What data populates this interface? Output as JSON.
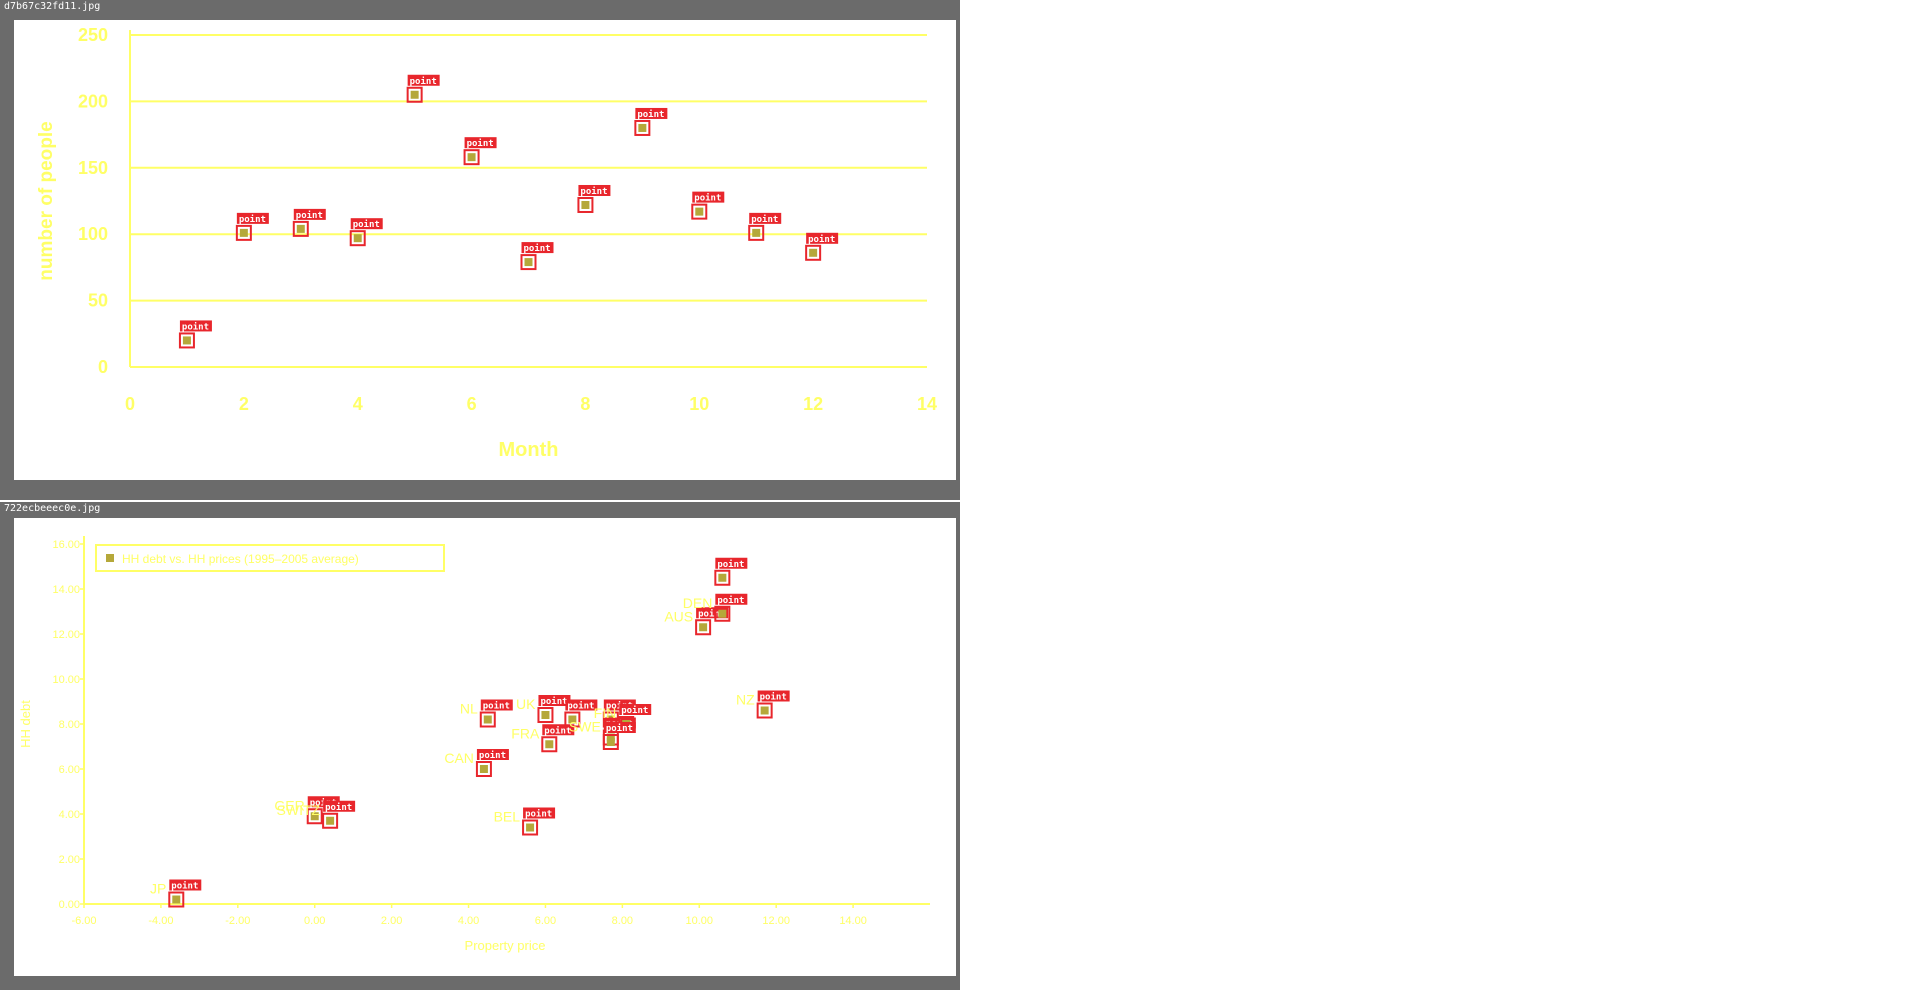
{
  "files": {
    "top": "d7b67c32fd11.jpg",
    "bottom": "722ecbeeec0e.jpg"
  },
  "colors": {
    "frame": "#6b6b6b",
    "chart_ink": "#ffff66",
    "detection_box": "#e8262c",
    "marker": "#b5a83a"
  },
  "detection_label": "point",
  "chart_data": [
    {
      "type": "scatter",
      "title": "",
      "xlabel": "Month",
      "ylabel": "number of people",
      "xlim": [
        0,
        14
      ],
      "ylim": [
        0,
        250
      ],
      "x_ticks": [
        "0",
        "2",
        "4",
        "6",
        "8",
        "10",
        "12",
        "14"
      ],
      "y_ticks": [
        "0",
        "50",
        "100",
        "150",
        "200",
        "250"
      ],
      "grid": "horizontal",
      "series": [
        {
          "x": [
            1,
            2,
            3,
            4,
            5,
            6,
            7,
            8,
            9,
            10,
            11,
            12
          ],
          "y": [
            20,
            101,
            104,
            97,
            205,
            158,
            79,
            122,
            180,
            117,
            101,
            86
          ]
        }
      ]
    },
    {
      "type": "scatter",
      "title": "",
      "xlabel": "Property price",
      "ylabel": "HH debt",
      "xlim": [
        -6,
        16
      ],
      "ylim": [
        0,
        16
      ],
      "x_ticks": [
        "-6.00",
        "-4.00",
        "-2.00",
        "0.00",
        "2.00",
        "4.00",
        "6.00",
        "8.00",
        "10.00",
        "12.00",
        "14.00"
      ],
      "y_ticks": [
        "0.00",
        "2.00",
        "4.00",
        "6.00",
        "8.00",
        "10.00",
        "12.00",
        "14.00",
        "16.00"
      ],
      "grid": "none",
      "legend": {
        "position": "top-left",
        "entries": [
          "HH debt vs. HH prices (1995–2005 average)"
        ]
      },
      "series": [
        {
          "x": [
            -3.6,
            0.0,
            0.4,
            4.4,
            5.6,
            4.5,
            6.0,
            6.1,
            6.7,
            7.7,
            7.7,
            8.1,
            7.7,
            10.1,
            10.6,
            10.6,
            11.7
          ],
          "y": [
            0.2,
            3.9,
            3.7,
            6.0,
            3.4,
            8.2,
            8.4,
            7.1,
            8.2,
            8.2,
            7.4,
            8.0,
            7.2,
            12.3,
            12.9,
            14.5,
            8.6
          ],
          "labels": [
            "JP",
            "GER",
            "SWITZ",
            "CAN",
            "BEL",
            "NL",
            "UK",
            "FRA",
            "",
            "",
            "SWE",
            "FIN",
            "",
            "AUS",
            "DEN",
            "",
            "NZ"
          ]
        }
      ]
    }
  ]
}
